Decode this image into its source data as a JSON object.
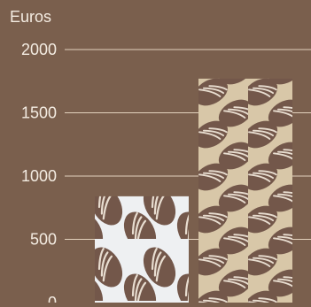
{
  "colors": {
    "background": "#7a5f4d",
    "gridline": "#e3d2bd",
    "text": "#f4ece2",
    "bean": "#73574a",
    "bean_highlight": "#e8ddd0",
    "series_1_fill": "#eef0f2",
    "series_2_fill": "#d8c7a8"
  },
  "chart_data": {
    "type": "bar",
    "ylabel": "Euros",
    "ylim": [
      0,
      2000
    ],
    "yticks": [
      0,
      500,
      1000,
      1500,
      2000
    ],
    "grid": true,
    "values": [
      840,
      1770
    ],
    "bar_patterns": [
      "cocoa-beans-on-white",
      "cocoa-beans-on-tan"
    ]
  }
}
